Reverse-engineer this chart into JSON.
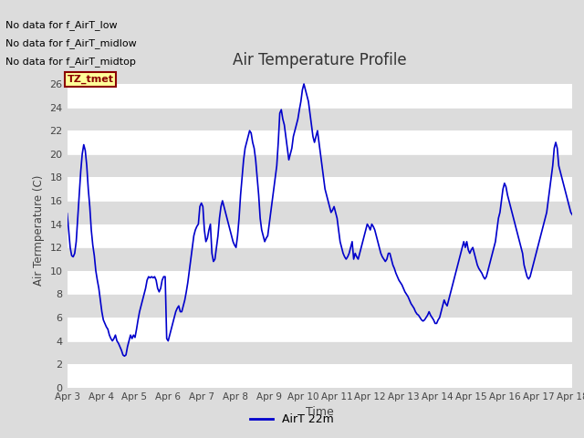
{
  "title": "Air Temperature Profile",
  "xlabel": "Time",
  "ylabel": "Air Termperature (C)",
  "ylim": [
    0,
    27
  ],
  "yticks": [
    0,
    2,
    4,
    6,
    8,
    10,
    12,
    14,
    16,
    18,
    20,
    22,
    24,
    26
  ],
  "line_color": "#0000CC",
  "line_width": 1.2,
  "bg_color": "#DCDCDC",
  "plot_bg_color": "#DCDCDC",
  "legend_label": "AirT 22m",
  "annotations": [
    "No data for f_AirT_low",
    "No data for f_AirT_midlow",
    "No data for f_AirT_midtop"
  ],
  "tz_label": "TZ_tmet",
  "x_tick_labels": [
    "Apr 3",
    "Apr 4",
    "Apr 5",
    "Apr 6",
    "Apr 7",
    "Apr 8",
    "Apr 9",
    "Apr 10",
    "Apr 11",
    "Apr 12",
    "Apr 13",
    "Apr 14",
    "Apr 15",
    "Apr 16",
    "Apr 17",
    "Apr 18"
  ],
  "temperatures": [
    14.9,
    13.5,
    12.0,
    11.3,
    11.2,
    11.5,
    12.5,
    14.5,
    16.5,
    18.5,
    20.0,
    20.8,
    20.3,
    19.0,
    17.0,
    15.5,
    13.5,
    12.2,
    11.3,
    10.0,
    9.2,
    8.5,
    7.5,
    6.5,
    5.8,
    5.5,
    5.2,
    5.0,
    4.5,
    4.2,
    4.0,
    4.2,
    4.5,
    4.0,
    3.8,
    3.5,
    3.2,
    2.8,
    2.7,
    2.8,
    3.5,
    4.0,
    4.5,
    4.2,
    4.5,
    4.3,
    5.0,
    5.8,
    6.5,
    7.0,
    7.5,
    8.0,
    8.5,
    9.2,
    9.5,
    9.4,
    9.5,
    9.4,
    9.5,
    9.2,
    8.5,
    8.2,
    8.5,
    9.2,
    9.5,
    9.5,
    4.2,
    4.0,
    4.5,
    5.0,
    5.5,
    6.0,
    6.5,
    6.8,
    7.0,
    6.5,
    6.5,
    7.0,
    7.5,
    8.2,
    9.0,
    10.0,
    11.0,
    12.0,
    13.0,
    13.5,
    13.8,
    14.0,
    15.5,
    15.8,
    15.5,
    13.5,
    12.5,
    12.8,
    13.5,
    14.0,
    11.5,
    10.8,
    11.0,
    12.0,
    13.0,
    14.5,
    15.5,
    16.0,
    15.5,
    15.0,
    14.5,
    14.0,
    13.5,
    13.0,
    12.5,
    12.2,
    12.0,
    13.0,
    14.5,
    16.5,
    18.0,
    19.5,
    20.5,
    21.0,
    21.5,
    22.0,
    21.8,
    21.0,
    20.5,
    19.5,
    18.0,
    16.5,
    14.5,
    13.5,
    13.0,
    12.5,
    12.8,
    13.0,
    14.0,
    15.0,
    16.0,
    17.0,
    18.0,
    19.0,
    21.0,
    23.5,
    23.8,
    23.0,
    22.5,
    21.5,
    20.5,
    19.5,
    20.0,
    20.5,
    21.5,
    22.0,
    22.5,
    23.0,
    23.8,
    24.5,
    25.5,
    26.0,
    25.5,
    25.0,
    24.5,
    23.5,
    22.5,
    21.5,
    21.0,
    21.5,
    22.0,
    21.0,
    20.0,
    19.0,
    18.0,
    17.0,
    16.5,
    16.0,
    15.5,
    15.0,
    15.2,
    15.5,
    15.0,
    14.5,
    13.5,
    12.5,
    12.0,
    11.5,
    11.2,
    11.0,
    11.2,
    11.5,
    12.0,
    12.5,
    11.0,
    11.5,
    11.2,
    11.0,
    11.5,
    12.0,
    12.5,
    13.0,
    13.5,
    14.0,
    13.8,
    13.5,
    14.0,
    13.8,
    13.5,
    13.0,
    12.5,
    12.0,
    11.5,
    11.2,
    11.0,
    10.8,
    11.0,
    11.5,
    11.5,
    11.0,
    10.5,
    10.2,
    9.8,
    9.5,
    9.2,
    9.0,
    8.8,
    8.5,
    8.2,
    8.0,
    7.8,
    7.5,
    7.2,
    7.0,
    6.8,
    6.5,
    6.3,
    6.2,
    6.0,
    5.8,
    5.7,
    5.8,
    6.0,
    6.2,
    6.5,
    6.2,
    6.0,
    5.8,
    5.5,
    5.5,
    5.8,
    6.0,
    6.5,
    7.0,
    7.5,
    7.2,
    7.0,
    7.5,
    8.0,
    8.5,
    9.0,
    9.5,
    10.0,
    10.5,
    11.0,
    11.5,
    12.0,
    12.5,
    12.0,
    12.5,
    11.8,
    11.5,
    11.8,
    12.0,
    11.5,
    11.0,
    10.5,
    10.2,
    10.0,
    9.8,
    9.5,
    9.3,
    9.5,
    10.0,
    10.5,
    11.0,
    11.5,
    12.0,
    12.5,
    13.5,
    14.5,
    15.0,
    16.0,
    17.0,
    17.5,
    17.2,
    16.5,
    16.0,
    15.5,
    15.0,
    14.5,
    14.0,
    13.5,
    13.0,
    12.5,
    12.0,
    11.5,
    10.5,
    10.0,
    9.5,
    9.3,
    9.5,
    10.0,
    10.5,
    11.0,
    11.5,
    12.0,
    12.5,
    13.0,
    13.5,
    14.0,
    14.5,
    15.0,
    16.0,
    17.0,
    18.0,
    19.0,
    20.5,
    21.0,
    20.5,
    19.0,
    18.5,
    18.0,
    17.5,
    17.0,
    16.5,
    16.0,
    15.5,
    15.0,
    14.8
  ]
}
